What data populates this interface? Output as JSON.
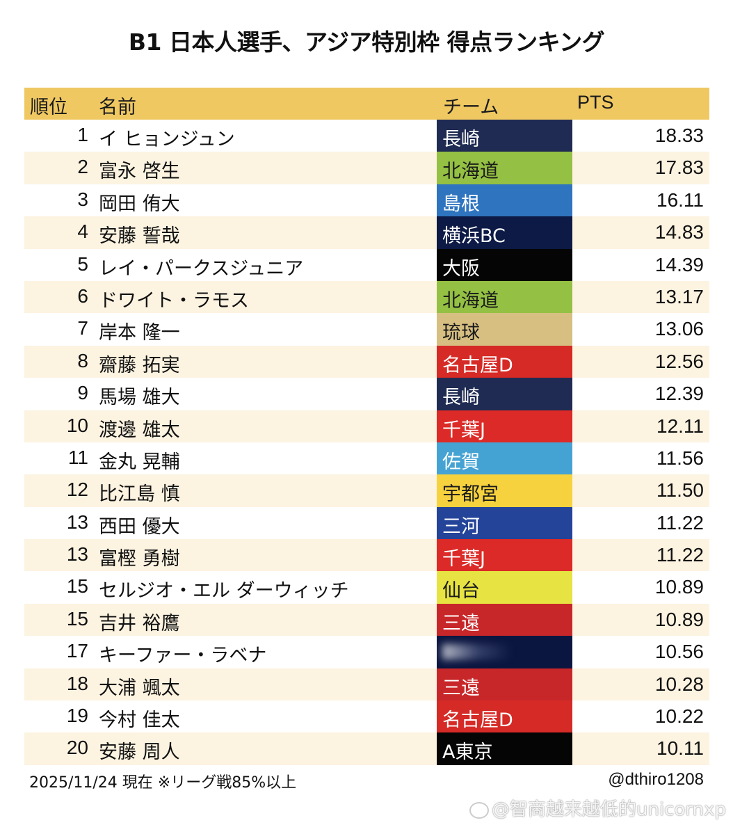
{
  "title": "B1 日本人選手、アジア特別枠 得点ランキング",
  "header": {
    "rank": "順位",
    "name": "名前",
    "team": "チーム",
    "pts": "PTS"
  },
  "rows": [
    {
      "rank": "1",
      "name": "イ ヒョンジュン",
      "team": "長崎",
      "team_bg": "#1f2b52",
      "team_fg": "#ffffff",
      "pts": "18.33"
    },
    {
      "rank": "2",
      "name": "富永 啓生",
      "team": "北海道",
      "team_bg": "#94c043",
      "team_fg": "#1a1a1a",
      "pts": "17.83"
    },
    {
      "rank": "3",
      "name": "岡田 侑大",
      "team": "島根",
      "team_bg": "#2f74bf",
      "team_fg": "#ffffff",
      "pts": "16.11"
    },
    {
      "rank": "4",
      "name": "安藤 誓哉",
      "team": "横浜BC",
      "team_bg": "#0c1a45",
      "team_fg": "#ffffff",
      "pts": "14.83"
    },
    {
      "rank": "5",
      "name": "レイ・パークスジュニア",
      "team": "大阪",
      "team_bg": "#050505",
      "team_fg": "#ffffff",
      "pts": "14.39"
    },
    {
      "rank": "6",
      "name": "ドワイト・ラモス",
      "team": "北海道",
      "team_bg": "#94c043",
      "team_fg": "#1a1a1a",
      "pts": "13.17"
    },
    {
      "rank": "7",
      "name": "岸本 隆一",
      "team": "琉球",
      "team_bg": "#d7bf82",
      "team_fg": "#1a1a1a",
      "pts": "13.06"
    },
    {
      "rank": "8",
      "name": "齋藤 拓実",
      "team": "名古屋D",
      "team_bg": "#d52a26",
      "team_fg": "#ffffff",
      "pts": "12.56"
    },
    {
      "rank": "9",
      "name": "馬場 雄大",
      "team": "長崎",
      "team_bg": "#1f2b52",
      "team_fg": "#ffffff",
      "pts": "12.39"
    },
    {
      "rank": "10",
      "name": "渡邊 雄太",
      "team": "千葉J",
      "team_bg": "#db2a27",
      "team_fg": "#ffffff",
      "pts": "12.11"
    },
    {
      "rank": "11",
      "name": "金丸 晃輔",
      "team": "佐賀",
      "team_bg": "#45a3d3",
      "team_fg": "#ffffff",
      "pts": "11.56"
    },
    {
      "rank": "12",
      "name": "比江島 慎",
      "team": "宇都宮",
      "team_bg": "#f5d23e",
      "team_fg": "#1a1a1a",
      "pts": "11.50"
    },
    {
      "rank": "13",
      "name": "西田 優大",
      "team": "三河",
      "team_bg": "#24449a",
      "team_fg": "#ffffff",
      "pts": "11.22"
    },
    {
      "rank": "13",
      "name": "富樫 勇樹",
      "team": "千葉J",
      "team_bg": "#db2a27",
      "team_fg": "#ffffff",
      "pts": "11.22"
    },
    {
      "rank": "15",
      "name": "セルジオ・エル ダーウィッチ",
      "team": "仙台",
      "team_bg": "#e7e342",
      "team_fg": "#1a1a1a",
      "pts": "10.89"
    },
    {
      "rank": "15",
      "name": "吉井 裕鷹",
      "team": "三遠",
      "team_bg": "#c8272a",
      "team_fg": "#ffffff",
      "pts": "10.89"
    },
    {
      "rank": "17",
      "name": "キーファー・ラベナ",
      "team": "",
      "team_bg": "#0b1640",
      "team_fg": "#ffffff",
      "pts": "10.56",
      "team_obscured": true
    },
    {
      "rank": "18",
      "name": "大浦 颯太",
      "team": "三遠",
      "team_bg": "#c8272a",
      "team_fg": "#ffffff",
      "pts": "10.28"
    },
    {
      "rank": "19",
      "name": "今村 佳太",
      "team": "名古屋D",
      "team_bg": "#d52a26",
      "team_fg": "#ffffff",
      "pts": "10.22"
    },
    {
      "rank": "20",
      "name": "安藤 周人",
      "team": "A東京",
      "team_bg": "#050505",
      "team_fg": "#ffffff",
      "pts": "10.11"
    }
  ],
  "footer": {
    "note": "2025/11/24 現在 ※リーグ戦85%以上",
    "credit": "@dthiro1208"
  },
  "watermark": "@智商越来越低的unicornxp",
  "colors": {
    "header_bg": "#efc862",
    "row_alt_bg": "#fcf3e1",
    "row_bg": "#ffffff"
  }
}
